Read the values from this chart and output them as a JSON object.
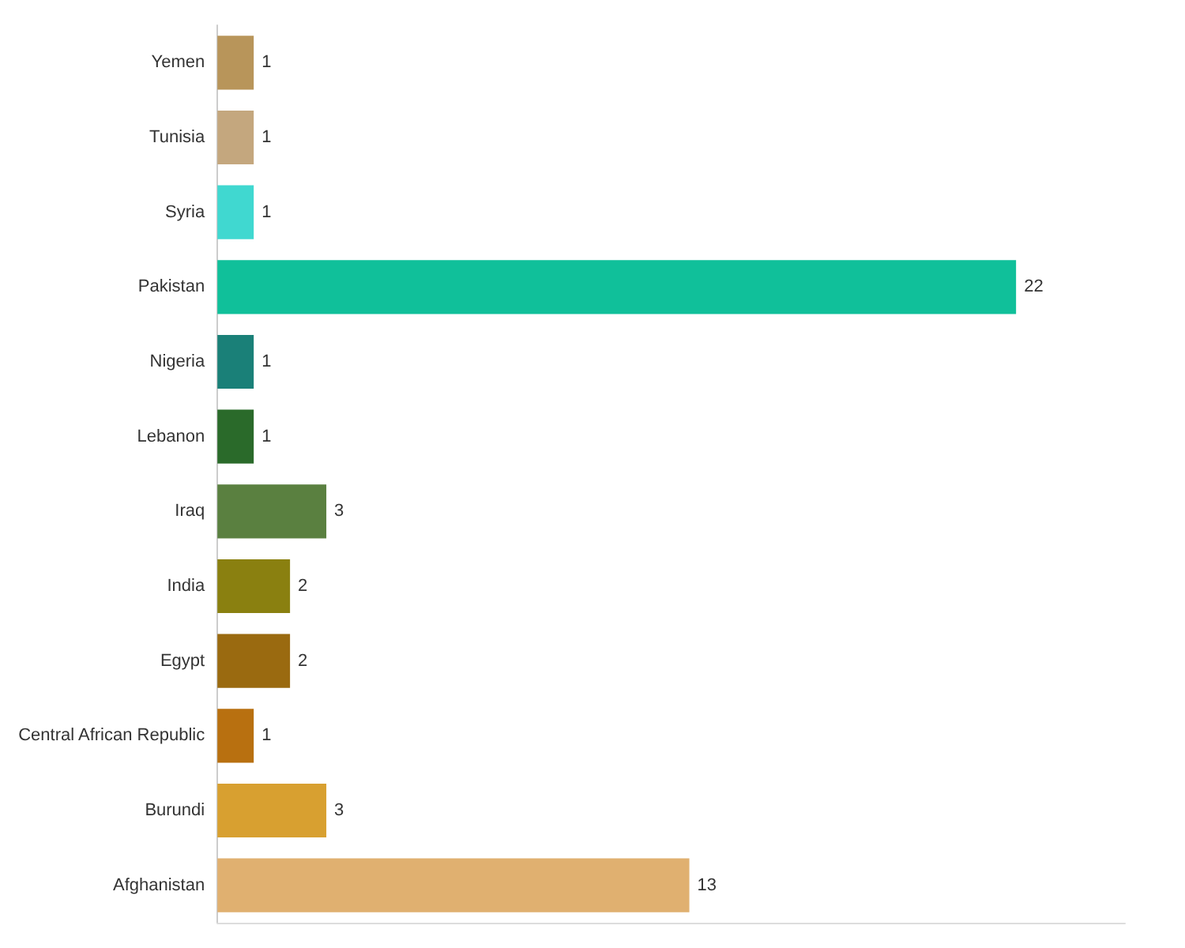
{
  "chart_data": {
    "type": "bar",
    "orientation": "horizontal",
    "categories": [
      "Yemen",
      "Tunisia",
      "Syria",
      "Pakistan",
      "Nigeria",
      "Lebanon",
      "Iraq",
      "India",
      "Egypt",
      "Central African Republic",
      "Burundi",
      "Afghanistan"
    ],
    "values": [
      1,
      1,
      1,
      22,
      1,
      1,
      3,
      2,
      2,
      1,
      3,
      13
    ],
    "colors": [
      "#b8955a",
      "#c4a77e",
      "#40d8d0",
      "#10c09a",
      "#1a8078",
      "#2a6a2a",
      "#5a8040",
      "#8a8010",
      "#9a6a10",
      "#b87010",
      "#d8a030",
      "#e0b070"
    ],
    "data_labels": true
  }
}
